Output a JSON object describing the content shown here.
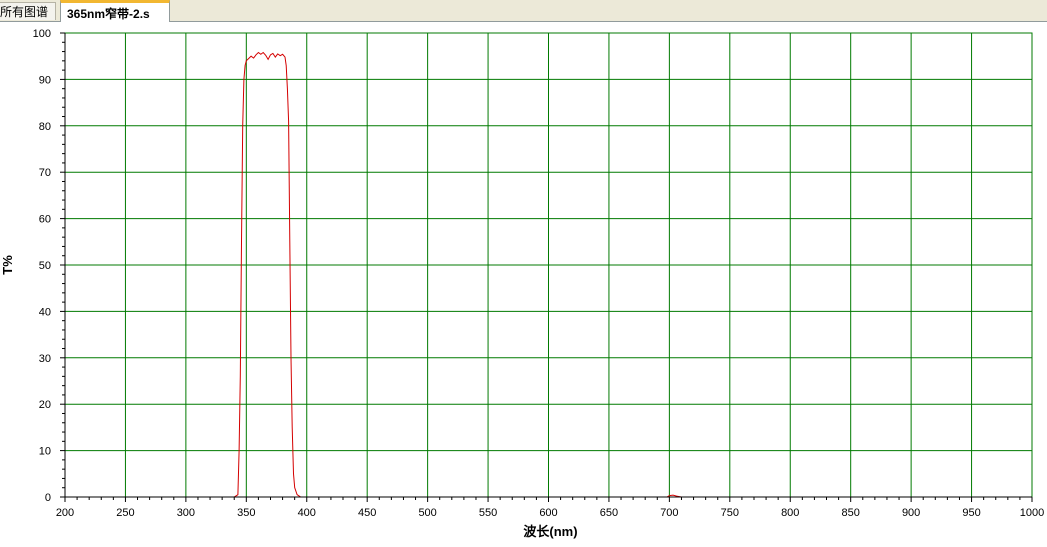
{
  "tabs": [
    {
      "label": "所有图谱",
      "active": false
    },
    {
      "label": "365nm窄带-2.s",
      "active": true
    }
  ],
  "colors": {
    "grid": "#007a00",
    "series": "#d40000",
    "axis": "#000000"
  },
  "chart_data": {
    "type": "line",
    "title": "",
    "xlabel": "波长(nm)",
    "ylabel": "T%",
    "xlim": [
      200,
      1000
    ],
    "ylim": [
      0,
      100
    ],
    "xticks": [
      200,
      250,
      300,
      350,
      400,
      450,
      500,
      550,
      600,
      650,
      700,
      750,
      800,
      850,
      900,
      950,
      1000
    ],
    "yticks": [
      0,
      10,
      20,
      30,
      40,
      50,
      60,
      70,
      80,
      90,
      100
    ],
    "grid": true,
    "series": [
      {
        "points": [
          [
            200,
            0
          ],
          [
            340,
            0
          ],
          [
            343,
            0.5
          ],
          [
            344,
            10
          ],
          [
            345,
            26
          ],
          [
            346,
            55
          ],
          [
            347,
            80
          ],
          [
            348,
            90
          ],
          [
            349,
            93
          ],
          [
            350,
            94
          ],
          [
            352,
            94.5
          ],
          [
            354,
            95
          ],
          [
            356,
            94.6
          ],
          [
            358,
            95.3
          ],
          [
            360,
            95.8
          ],
          [
            362,
            95.4
          ],
          [
            364,
            95.8
          ],
          [
            366,
            95.2
          ],
          [
            368,
            94.3
          ],
          [
            370,
            95.3
          ],
          [
            372,
            95.6
          ],
          [
            374,
            94.8
          ],
          [
            376,
            95.5
          ],
          [
            378,
            95.1
          ],
          [
            380,
            95.4
          ],
          [
            382,
            94.8
          ],
          [
            383,
            93
          ],
          [
            384,
            88
          ],
          [
            385,
            81
          ],
          [
            386,
            55
          ],
          [
            387,
            30
          ],
          [
            388,
            15
          ],
          [
            389,
            5
          ],
          [
            390,
            2
          ],
          [
            392,
            0.5
          ],
          [
            395,
            0
          ],
          [
            698,
            0
          ],
          [
            700,
            0.3
          ],
          [
            703,
            0.4
          ],
          [
            706,
            0.2
          ],
          [
            710,
            0
          ],
          [
            1000,
            0
          ]
        ]
      }
    ]
  }
}
